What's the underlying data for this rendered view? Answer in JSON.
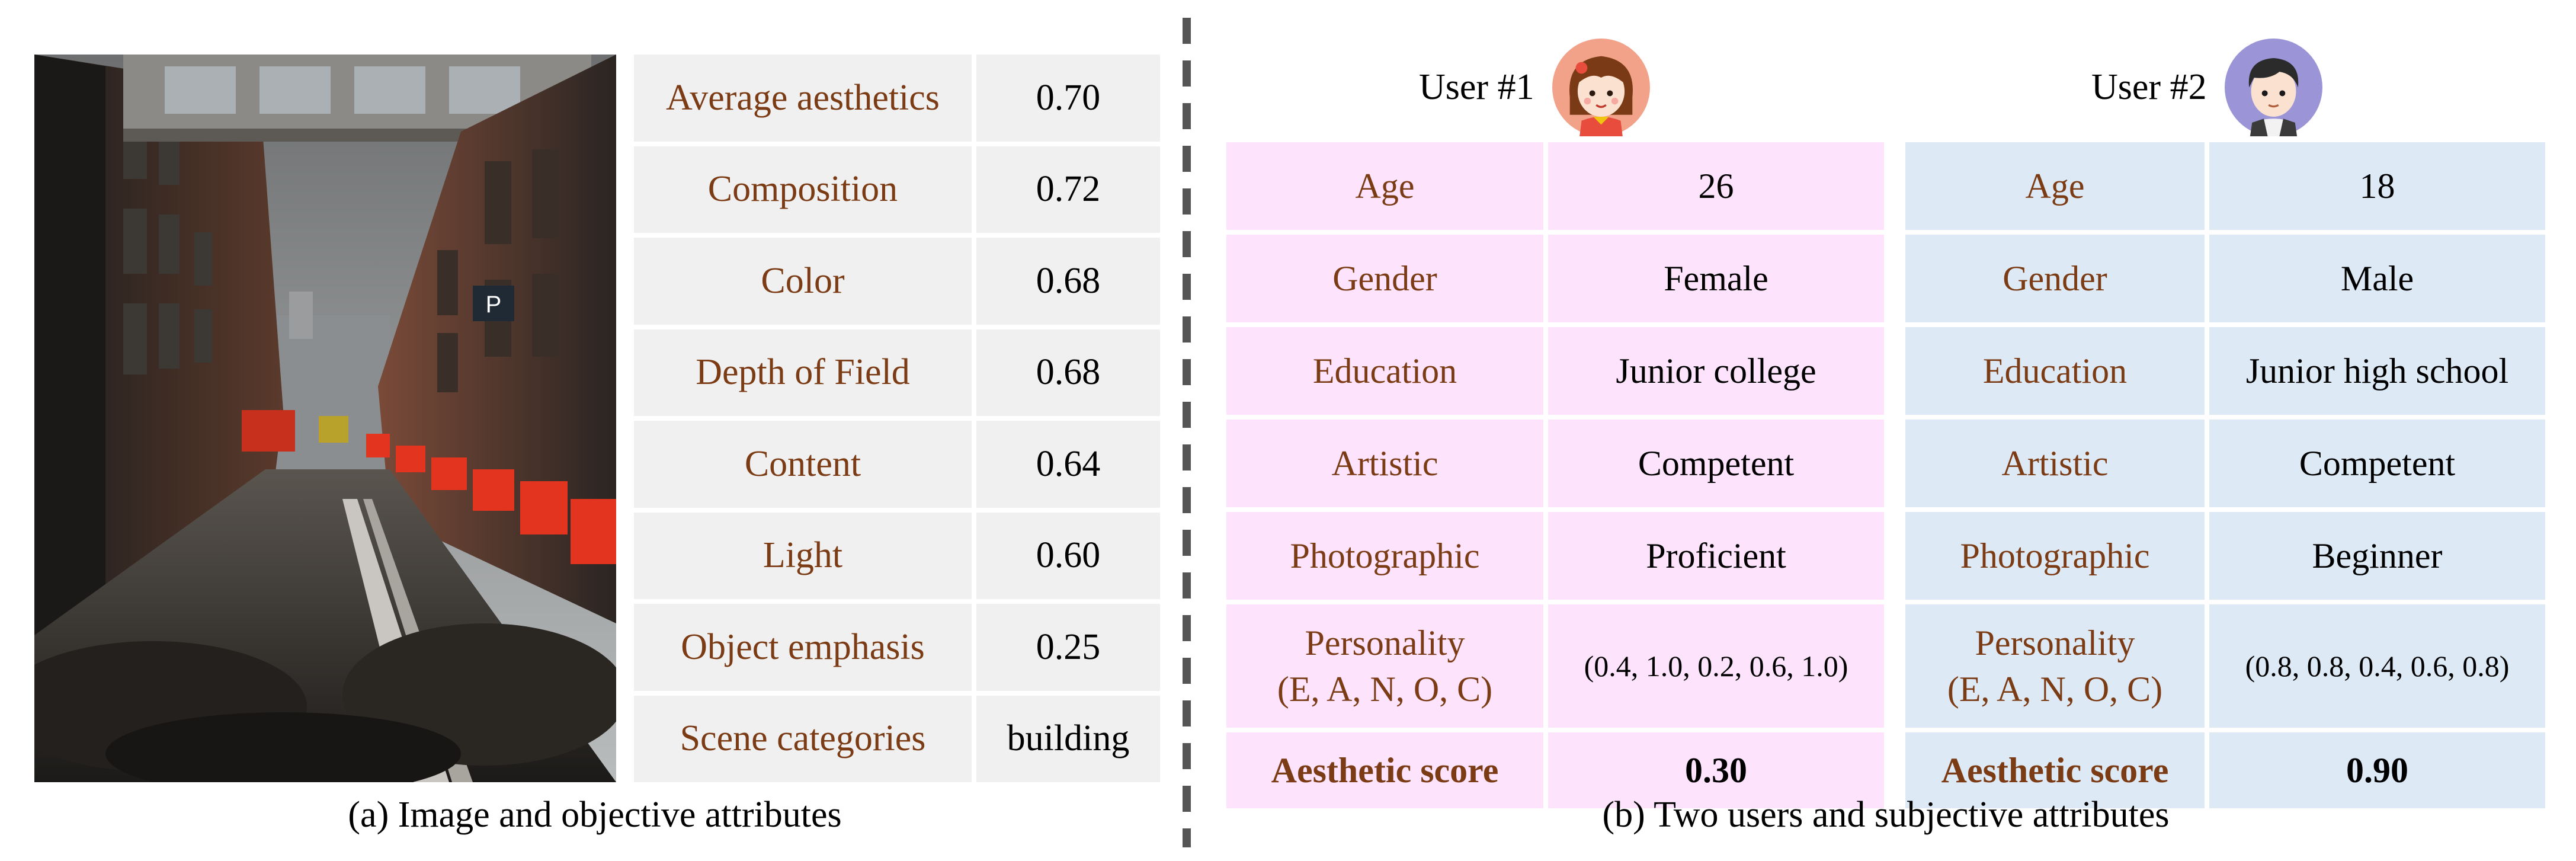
{
  "objective": {
    "rows": [
      {
        "label": "Average aesthetics",
        "value": "0.70"
      },
      {
        "label": "Composition",
        "value": "0.72"
      },
      {
        "label": "Color",
        "value": "0.68"
      },
      {
        "label": "Depth of Field",
        "value": "0.68"
      },
      {
        "label": "Content",
        "value": "0.64"
      },
      {
        "label": "Light",
        "value": "0.60"
      },
      {
        "label": "Object emphasis",
        "value": "0.25"
      },
      {
        "label": "Scene categories",
        "value": "building"
      }
    ],
    "caption": "(a) Image and objective attributes"
  },
  "users": [
    {
      "name": "User #1",
      "avatar": "girl-avatar-icon",
      "rows": [
        {
          "label": "Age",
          "value": "26"
        },
        {
          "label": "Gender",
          "value": "Female"
        },
        {
          "label": "Education",
          "value": "Junior college"
        },
        {
          "label": "Artistic",
          "value": "Competent"
        },
        {
          "label": "Photographic",
          "value": "Proficient"
        },
        {
          "label_line1": "Personality",
          "label_line2": "(E, A, N, O, C)",
          "value": "(0.4, 1.0, 0.2, 0.6, 1.0)"
        },
        {
          "label": "Aesthetic score",
          "value": "0.30"
        }
      ]
    },
    {
      "name": "User #2",
      "avatar": "boy-avatar-icon",
      "rows": [
        {
          "label": "Age",
          "value": "18"
        },
        {
          "label": "Gender",
          "value": "Male"
        },
        {
          "label": "Education",
          "value": "Junior high school"
        },
        {
          "label": "Artistic",
          "value": "Competent"
        },
        {
          "label": "Photographic",
          "value": "Beginner"
        },
        {
          "label_line1": "Personality",
          "label_line2": "(E, A, N, O, C)",
          "value": "(0.8, 0.8, 0.4, 0.6, 0.8)"
        },
        {
          "label": "Aesthetic score",
          "value": "0.90"
        }
      ]
    }
  ],
  "subjective_caption": "(b) Two users and subjective attributes",
  "colors": {
    "label_text": "#7b3b14",
    "objective_cell": "#f0f0f0",
    "user1_cell": "#fde3fc",
    "user2_cell": "#dde9f5"
  }
}
